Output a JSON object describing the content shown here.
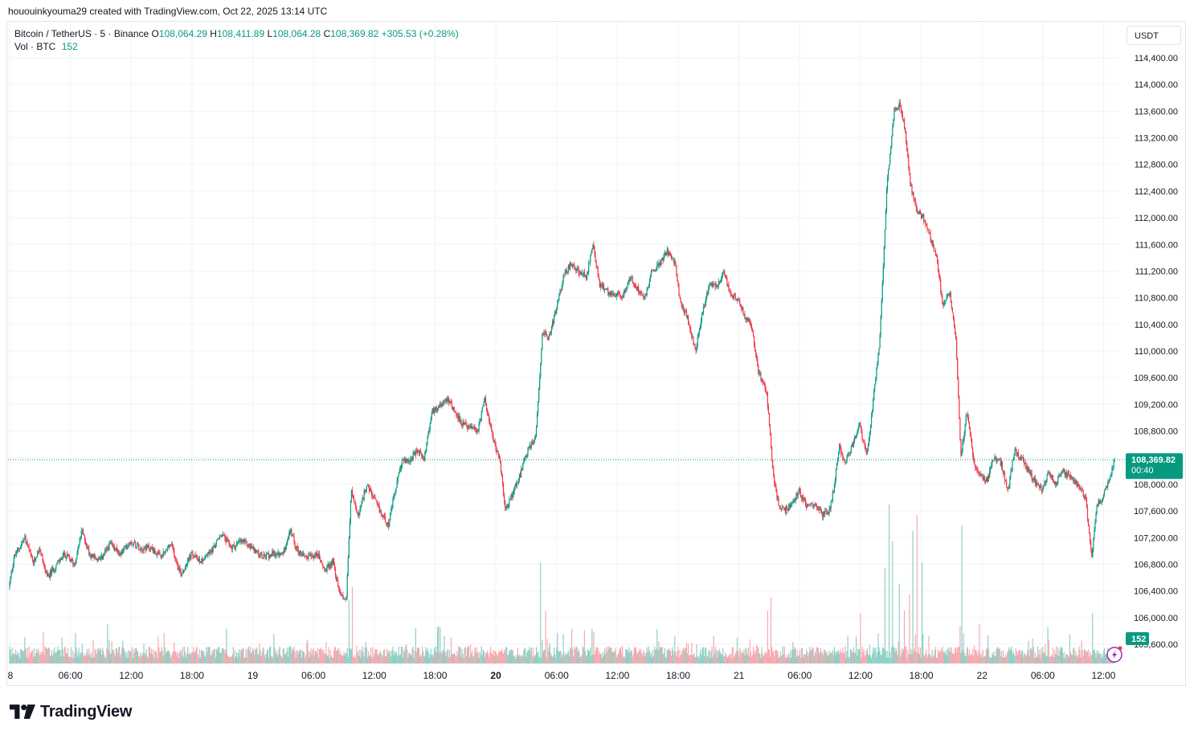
{
  "caption": "hououinkyouma29 created with TradingView.com, Oct 22, 2025 13:14 UTC",
  "legend": {
    "symbol": "Bitcoin / TetherUS · 5 · Binance",
    "o_label": "O",
    "o_value": "108,064.29",
    "h_label": "H",
    "h_value": "108,411.89",
    "l_label": "L",
    "l_value": "108,064.28",
    "c_label": "C",
    "c_value": "108,369.82",
    "change": "+305.53 (+0.28%)",
    "vol_label": "Vol · BTC",
    "vol_value": "152"
  },
  "currency": "USDT",
  "last_price_label": "108,369.82",
  "countdown": "00:40",
  "volume_badge": "152",
  "brand": "TradingView",
  "colors": {
    "up": "#089981",
    "down": "#f23645",
    "up_vol": "#8fd0c4",
    "down_vol": "#f7a9b0",
    "grid": "#f0f3fa"
  },
  "chart_data": {
    "type": "candlestick",
    "symbol": "BTCUSDT",
    "interval": "5",
    "ylim": [
      105300,
      114800
    ],
    "y_ticks": [
      105600,
      106000,
      106400,
      106800,
      107200,
      107600,
      108000,
      108400,
      108800,
      109200,
      109600,
      110000,
      110400,
      110800,
      111200,
      111600,
      112000,
      112400,
      112800,
      113200,
      113600,
      114000,
      114400
    ],
    "y_tick_labels": [
      "105,600.00",
      "106,000.00",
      "106,400.00",
      "106,800.00",
      "107,200.00",
      "107,600.00",
      "108,000.00",
      "108,400.00",
      "108,800.00",
      "109,200.00",
      "109,600.00",
      "110,000.00",
      "110,400.00",
      "110,800.00",
      "111,200.00",
      "111,600.00",
      "112,000.00",
      "112,400.00",
      "112,800.00",
      "113,200.00",
      "113,600.00",
      "114,000.00",
      "114,400.00"
    ],
    "x_ticks": [
      {
        "label": "8",
        "t": 0,
        "bold": false
      },
      {
        "label": "06:00",
        "t": 6,
        "bold": false
      },
      {
        "label": "12:00",
        "t": 12,
        "bold": false
      },
      {
        "label": "18:00",
        "t": 18,
        "bold": false
      },
      {
        "label": "19",
        "t": 24,
        "bold": false
      },
      {
        "label": "06:00",
        "t": 30,
        "bold": false
      },
      {
        "label": "12:00",
        "t": 36,
        "bold": false
      },
      {
        "label": "18:00",
        "t": 42,
        "bold": false
      },
      {
        "label": "20",
        "t": 48,
        "bold": true
      },
      {
        "label": "06:00",
        "t": 54,
        "bold": false
      },
      {
        "label": "12:00",
        "t": 60,
        "bold": false
      },
      {
        "label": "18:00",
        "t": 66,
        "bold": false
      },
      {
        "label": "21",
        "t": 72,
        "bold": false
      },
      {
        "label": "06:00",
        "t": 78,
        "bold": false
      },
      {
        "label": "12:00",
        "t": 84,
        "bold": false
      },
      {
        "label": "18:00",
        "t": 90,
        "bold": false
      },
      {
        "label": "22",
        "t": 96,
        "bold": false
      },
      {
        "label": "06:00",
        "t": 102,
        "bold": false
      },
      {
        "label": "12:00",
        "t": 108,
        "bold": false
      }
    ],
    "time_range_hours": [
      0,
      109.2
    ],
    "last_price": 108369.82,
    "price_path": [
      [
        0,
        106450
      ],
      [
        0.5,
        106900
      ],
      [
        1.6,
        107200
      ],
      [
        2.4,
        106800
      ],
      [
        3.0,
        107050
      ],
      [
        3.8,
        106600
      ],
      [
        4.5,
        106750
      ],
      [
        5.5,
        106950
      ],
      [
        6.5,
        106800
      ],
      [
        7.2,
        107300
      ],
      [
        8.0,
        106950
      ],
      [
        9.0,
        106850
      ],
      [
        10.0,
        107100
      ],
      [
        11.0,
        106950
      ],
      [
        12.0,
        107150
      ],
      [
        13.0,
        107050
      ],
      [
        14.0,
        107050
      ],
      [
        15.0,
        106900
      ],
      [
        16.0,
        107100
      ],
      [
        17.0,
        106650
      ],
      [
        18.0,
        106950
      ],
      [
        19.0,
        106850
      ],
      [
        20.0,
        107000
      ],
      [
        21.0,
        107250
      ],
      [
        22.0,
        107050
      ],
      [
        23.0,
        107150
      ],
      [
        24.0,
        107050
      ],
      [
        25.0,
        106900
      ],
      [
        26.0,
        106950
      ],
      [
        27.0,
        106950
      ],
      [
        27.8,
        107300
      ],
      [
        28.5,
        107000
      ],
      [
        29.5,
        106900
      ],
      [
        30.5,
        106950
      ],
      [
        31.2,
        106700
      ],
      [
        32.0,
        106850
      ],
      [
        32.6,
        106400
      ],
      [
        33.3,
        106250
      ],
      [
        33.8,
        107900
      ],
      [
        34.5,
        107500
      ],
      [
        35.3,
        108000
      ],
      [
        36.0,
        107800
      ],
      [
        36.8,
        107550
      ],
      [
        37.5,
        107400
      ],
      [
        38.0,
        107800
      ],
      [
        38.8,
        108350
      ],
      [
        39.5,
        108350
      ],
      [
        40.3,
        108500
      ],
      [
        41.0,
        108400
      ],
      [
        41.8,
        109100
      ],
      [
        42.6,
        109200
      ],
      [
        43.3,
        109300
      ],
      [
        44.0,
        109100
      ],
      [
        44.8,
        108900
      ],
      [
        45.5,
        108850
      ],
      [
        46.3,
        108800
      ],
      [
        47.0,
        109300
      ],
      [
        47.6,
        108800
      ],
      [
        48.0,
        108600
      ],
      [
        48.5,
        108350
      ],
      [
        49.0,
        107600
      ],
      [
        49.8,
        107900
      ],
      [
        50.5,
        108150
      ],
      [
        51.2,
        108500
      ],
      [
        52.0,
        108700
      ],
      [
        52.7,
        110300
      ],
      [
        53.3,
        110200
      ],
      [
        54.0,
        110600
      ],
      [
        54.8,
        111150
      ],
      [
        55.5,
        111300
      ],
      [
        56.3,
        111200
      ],
      [
        57.0,
        111100
      ],
      [
        57.7,
        111600
      ],
      [
        58.3,
        111000
      ],
      [
        59.0,
        110900
      ],
      [
        59.8,
        110850
      ],
      [
        60.5,
        110800
      ],
      [
        61.3,
        111100
      ],
      [
        62.0,
        110950
      ],
      [
        62.8,
        110800
      ],
      [
        63.5,
        111200
      ],
      [
        64.2,
        111300
      ],
      [
        65.0,
        111500
      ],
      [
        65.8,
        111300
      ],
      [
        66.3,
        110700
      ],
      [
        67.0,
        110500
      ],
      [
        67.8,
        110000
      ],
      [
        68.5,
        110600
      ],
      [
        69.2,
        111000
      ],
      [
        70.0,
        111000
      ],
      [
        70.6,
        111200
      ],
      [
        71.3,
        110800
      ],
      [
        72.0,
        110800
      ],
      [
        72.7,
        110500
      ],
      [
        73.3,
        110400
      ],
      [
        74.0,
        109700
      ],
      [
        74.8,
        109400
      ],
      [
        75.5,
        108100
      ],
      [
        76.0,
        107700
      ],
      [
        76.6,
        107600
      ],
      [
        77.3,
        107700
      ],
      [
        78.0,
        107900
      ],
      [
        78.7,
        107700
      ],
      [
        79.5,
        107700
      ],
      [
        80.3,
        107550
      ],
      [
        81.0,
        107600
      ],
      [
        81.5,
        108000
      ],
      [
        82.0,
        108600
      ],
      [
        82.5,
        108300
      ],
      [
        83.3,
        108600
      ],
      [
        84.0,
        108900
      ],
      [
        84.7,
        108400
      ],
      [
        85.5,
        109500
      ],
      [
        86.0,
        110200
      ],
      [
        86.7,
        112500
      ],
      [
        87.4,
        113600
      ],
      [
        88.0,
        113700
      ],
      [
        88.5,
        113300
      ],
      [
        89.0,
        112500
      ],
      [
        89.7,
        112100
      ],
      [
        90.3,
        112000
      ],
      [
        91.0,
        111700
      ],
      [
        91.6,
        111400
      ],
      [
        92.2,
        110700
      ],
      [
        92.9,
        110900
      ],
      [
        93.5,
        110200
      ],
      [
        94.0,
        108400
      ],
      [
        94.6,
        109100
      ],
      [
        95.3,
        108300
      ],
      [
        96.0,
        108100
      ],
      [
        96.6,
        108050
      ],
      [
        97.2,
        108400
      ],
      [
        98.0,
        108300
      ],
      [
        98.6,
        107900
      ],
      [
        99.3,
        108500
      ],
      [
        100.0,
        108400
      ],
      [
        100.6,
        108200
      ],
      [
        101.3,
        108050
      ],
      [
        102.0,
        107900
      ],
      [
        102.7,
        108200
      ],
      [
        103.3,
        108000
      ],
      [
        104.0,
        108200
      ],
      [
        104.8,
        108100
      ],
      [
        105.5,
        108000
      ],
      [
        106.3,
        107800
      ],
      [
        106.9,
        106900
      ],
      [
        107.4,
        107700
      ],
      [
        108.0,
        107800
      ],
      [
        108.7,
        108100
      ],
      [
        109.2,
        108370
      ]
    ],
    "volume_spikes": [
      {
        "t": 33.5,
        "v": 240
      },
      {
        "t": 33.8,
        "v": 290
      },
      {
        "t": 52.4,
        "v": 380
      },
      {
        "t": 52.9,
        "v": 200
      },
      {
        "t": 57.5,
        "v": 130
      },
      {
        "t": 74.8,
        "v": 200
      },
      {
        "t": 75.2,
        "v": 250
      },
      {
        "t": 84.0,
        "v": 190
      },
      {
        "t": 86.4,
        "v": 360
      },
      {
        "t": 86.8,
        "v": 600
      },
      {
        "t": 87.2,
        "v": 460
      },
      {
        "t": 87.8,
        "v": 300
      },
      {
        "t": 88.3,
        "v": 200
      },
      {
        "t": 88.8,
        "v": 260
      },
      {
        "t": 89.2,
        "v": 500
      },
      {
        "t": 89.6,
        "v": 560
      },
      {
        "t": 90.1,
        "v": 380
      },
      {
        "t": 94.0,
        "v": 520
      },
      {
        "t": 106.9,
        "v": 190
      }
    ]
  }
}
